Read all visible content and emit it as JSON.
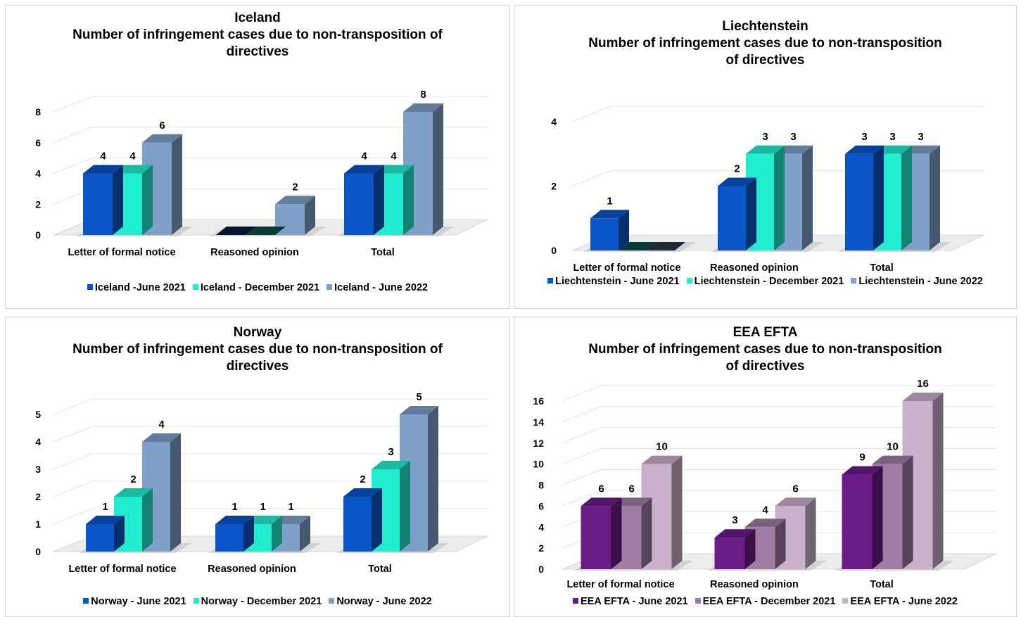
{
  "chart_data": [
    {
      "type": "bar",
      "title": "Iceland",
      "subtitle": [
        "Number of infringement cases due to non-transposition of",
        "directives"
      ],
      "categories": [
        "Letter of formal notice",
        "Reasoned opinion",
        "Total"
      ],
      "series": [
        {
          "name": "Iceland -June 2021",
          "values": [
            4,
            0,
            4
          ],
          "color": "#0A55C8"
        },
        {
          "name": "Iceland - December 2021",
          "values": [
            4,
            0,
            4
          ],
          "color": "#20EDD0"
        },
        {
          "name": "Iceland - June 2022",
          "values": [
            6,
            2,
            8
          ],
          "color": "#7FA1C9"
        }
      ],
      "ylim": [
        0,
        8
      ],
      "yticks": [
        0,
        2,
        4,
        6,
        8
      ],
      "legend": "bottom",
      "grid": true
    },
    {
      "type": "bar",
      "title": "Liechtenstein",
      "subtitle": [
        "Number of infringement cases due to non-transposition",
        "of directives"
      ],
      "categories": [
        "Letter of formal notice",
        "Reasoned opinion",
        "Total"
      ],
      "series": [
        {
          "name": "Liechtenstein - June 2021",
          "values": [
            1,
            2,
            3
          ],
          "color": "#0A55C8"
        },
        {
          "name": "Liechtenstein - December 2021",
          "values": [
            0,
            3,
            3
          ],
          "color": "#20EDD0"
        },
        {
          "name": "Liechtenstein - June 2022",
          "values": [
            0,
            3,
            3
          ],
          "color": "#7FA1C9"
        }
      ],
      "ylim": [
        0,
        4
      ],
      "yticks": [
        0,
        2,
        4
      ],
      "legend": "bottom",
      "grid": true
    },
    {
      "type": "bar",
      "title": "Norway",
      "subtitle": [
        "Number of infringement cases due to non-transposition of",
        "directives"
      ],
      "categories": [
        "Letter of formal notice",
        "Reasoned opinion",
        "Total"
      ],
      "series": [
        {
          "name": "Norway - June 2021",
          "values": [
            1,
            1,
            2
          ],
          "color": "#0A55C8"
        },
        {
          "name": "Norway - December 2021",
          "values": [
            2,
            1,
            3
          ],
          "color": "#20EDD0"
        },
        {
          "name": "Norway - June 2022",
          "values": [
            4,
            1,
            5
          ],
          "color": "#7FA1C9"
        }
      ],
      "ylim": [
        0,
        5
      ],
      "yticks": [
        0,
        1,
        2,
        3,
        4,
        5
      ],
      "legend": "bottom",
      "grid": true
    },
    {
      "type": "bar",
      "title": "EEA EFTA",
      "subtitle": [
        "Number of infringement cases due to non-transposition",
        "of directives"
      ],
      "categories": [
        "Letter of formal notice",
        "Reasoned opinion",
        "Total"
      ],
      "series": [
        {
          "name": "EEA EFTA - June 2021",
          "values": [
            6,
            3,
            9
          ],
          "color": "#6A1B86"
        },
        {
          "name": "EEA EFTA - December 2021",
          "values": [
            6,
            4,
            10
          ],
          "color": "#A07CA4"
        },
        {
          "name": "EEA EFTA - June 2022",
          "values": [
            10,
            6,
            16
          ],
          "color": "#C9B0CB"
        }
      ],
      "ylim": [
        0,
        16
      ],
      "yticks": [
        0,
        2,
        4,
        6,
        8,
        10,
        12,
        14,
        16
      ],
      "legend": "bottom",
      "grid": true
    }
  ]
}
